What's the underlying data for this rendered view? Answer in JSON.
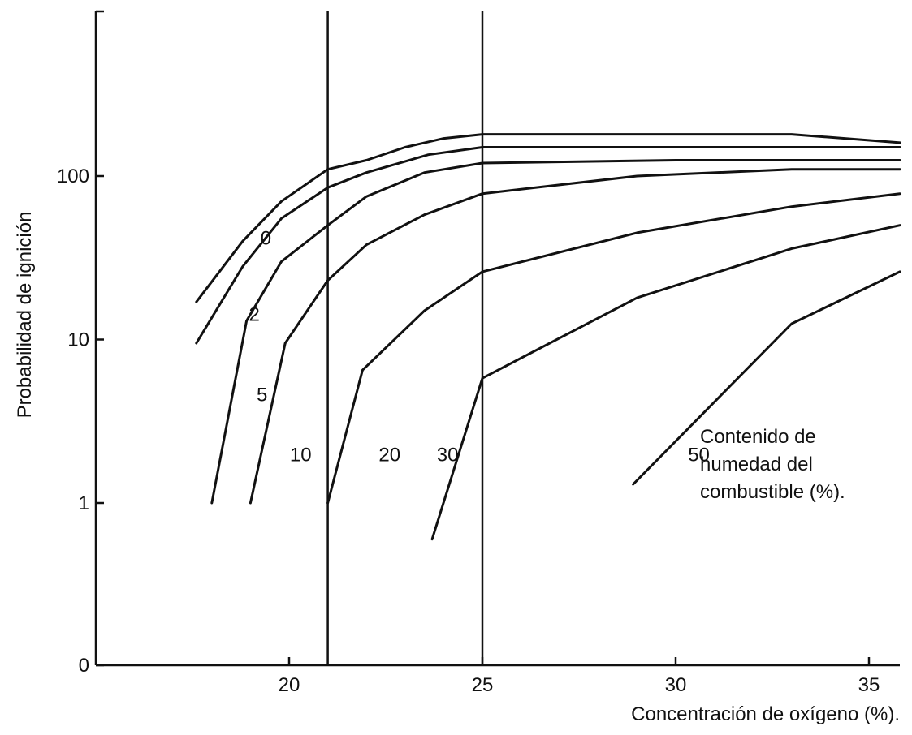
{
  "chart_data": {
    "type": "line",
    "title": "",
    "xlabel": "Concentración de oxígeno (%).",
    "ylabel": "Probabilidad de ignición",
    "xlim": [
      15,
      36
    ],
    "ylim": [
      0,
      1000
    ],
    "y_scale": "log-with-zero-baseline",
    "x_ticks": [
      20,
      25,
      30,
      35
    ],
    "y_ticks": [
      {
        "value": 0,
        "label": "0"
      },
      {
        "value": 1,
        "label": "1"
      },
      {
        "value": 10,
        "label": "10"
      },
      {
        "value": 100,
        "label": "100"
      }
    ],
    "reference_lines_x": [
      21,
      25
    ],
    "grid": false,
    "legend": "none",
    "series": [
      {
        "name": "0",
        "x": [
          17.6,
          18.8,
          19.8,
          21,
          22,
          23,
          24,
          25,
          30,
          33,
          35.8
        ],
        "y": [
          17,
          40,
          70,
          110,
          125,
          150,
          170,
          180,
          180,
          180,
          160
        ]
      },
      {
        "name": "2",
        "x": [
          17.6,
          18.8,
          19.8,
          21,
          22,
          23.6,
          25,
          28,
          33,
          35.8
        ],
        "y": [
          9.5,
          28,
          55,
          85,
          105,
          135,
          150,
          150,
          150,
          150
        ]
      },
      {
        "name": "5",
        "x": [
          18,
          18.9,
          19.8,
          21,
          22,
          23.5,
          25,
          30,
          35.8
        ],
        "y": [
          1,
          13,
          30,
          50,
          75,
          105,
          120,
          125,
          125
        ]
      },
      {
        "name": "10",
        "x": [
          19,
          19.9,
          21,
          22,
          23.5,
          25,
          29,
          33,
          35.8
        ],
        "y": [
          1,
          9.5,
          23,
          38,
          58,
          78,
          100,
          110,
          110
        ]
      },
      {
        "name": "20",
        "x": [
          21,
          21.9,
          23.5,
          25,
          29,
          33,
          35.8
        ],
        "y": [
          1,
          6.5,
          15,
          26,
          45,
          65,
          78
        ]
      },
      {
        "name": "30",
        "x": [
          23.7,
          25,
          29,
          33,
          35.8
        ],
        "y": [
          0.6,
          5.8,
          18,
          36,
          50
        ]
      },
      {
        "name": "50",
        "x": [
          28.9,
          33,
          35.8
        ],
        "y": [
          1.3,
          12.5,
          26
        ]
      }
    ],
    "annotations": [
      "Contenido de",
      "humedad del",
      "combustible (%)."
    ]
  }
}
